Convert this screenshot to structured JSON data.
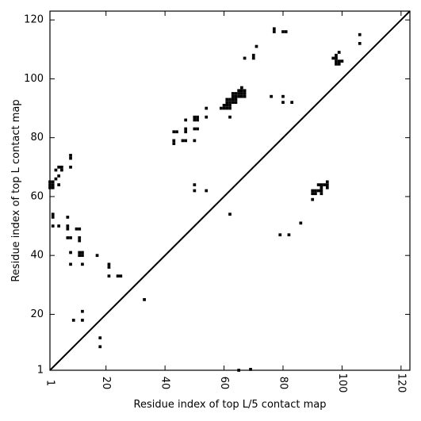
{
  "chart_data": {
    "type": "scatter",
    "xlabel": "Residue index of top L/5 contact map",
    "ylabel": "Residue index of top L contact map",
    "xlim": [
      1,
      123
    ],
    "ylim": [
      1,
      123
    ],
    "x_ticks": [
      1,
      20,
      40,
      60,
      80,
      100,
      120
    ],
    "y_ticks": [
      1,
      20,
      40,
      60,
      80,
      100,
      120
    ],
    "x_tick_labels": [
      "1",
      "20",
      "40",
      "60",
      "80",
      "100",
      "120"
    ],
    "y_tick_labels": [
      "1",
      "20",
      "40",
      "60",
      "80",
      "100",
      "120"
    ],
    "diagonal": true,
    "grid": false,
    "marker_color": "#000000",
    "points": [
      [
        1,
        63
      ],
      [
        1,
        64
      ],
      [
        1,
        65
      ],
      [
        2,
        63
      ],
      [
        2,
        64
      ],
      [
        2,
        65
      ],
      [
        2,
        53
      ],
      [
        2,
        54
      ],
      [
        2,
        50
      ],
      [
        3,
        69
      ],
      [
        3,
        66
      ],
      [
        4,
        70
      ],
      [
        4,
        67
      ],
      [
        4,
        64
      ],
      [
        4,
        50
      ],
      [
        5,
        70
      ],
      [
        5,
        69
      ],
      [
        7,
        53
      ],
      [
        7,
        50
      ],
      [
        7,
        49
      ],
      [
        7,
        46
      ],
      [
        8,
        74
      ],
      [
        8,
        73
      ],
      [
        8,
        70
      ],
      [
        8,
        46
      ],
      [
        8,
        41
      ],
      [
        8,
        37
      ],
      [
        10,
        49
      ],
      [
        11,
        49
      ],
      [
        11,
        46
      ],
      [
        11,
        45
      ],
      [
        11,
        41
      ],
      [
        11,
        40
      ],
      [
        12,
        41
      ],
      [
        12,
        40
      ],
      [
        12,
        37
      ],
      [
        12,
        21
      ],
      [
        12,
        18
      ],
      [
        9,
        18
      ],
      [
        17,
        40
      ],
      [
        18,
        12
      ],
      [
        18,
        9
      ],
      [
        21,
        37
      ],
      [
        21,
        36
      ],
      [
        21,
        33
      ],
      [
        24,
        33
      ],
      [
        25,
        33
      ],
      [
        33,
        25
      ],
      [
        43,
        82
      ],
      [
        43,
        79
      ],
      [
        43,
        78
      ],
      [
        44,
        82
      ],
      [
        46,
        79
      ],
      [
        47,
        86
      ],
      [
        47,
        83
      ],
      [
        47,
        82
      ],
      [
        47,
        79
      ],
      [
        50,
        87
      ],
      [
        50,
        86
      ],
      [
        50,
        83
      ],
      [
        50,
        79
      ],
      [
        50,
        64
      ],
      [
        50,
        62
      ],
      [
        51,
        87
      ],
      [
        51,
        86
      ],
      [
        51,
        83
      ],
      [
        54,
        90
      ],
      [
        54,
        87
      ],
      [
        54,
        62
      ],
      [
        59,
        90
      ],
      [
        60,
        90
      ],
      [
        60,
        91
      ],
      [
        61,
        90
      ],
      [
        61,
        91
      ],
      [
        61,
        92
      ],
      [
        61,
        93
      ],
      [
        62,
        90
      ],
      [
        62,
        91
      ],
      [
        62,
        92
      ],
      [
        62,
        93
      ],
      [
        62,
        87
      ],
      [
        62,
        54
      ],
      [
        63,
        92
      ],
      [
        63,
        93
      ],
      [
        63,
        94
      ],
      [
        63,
        95
      ],
      [
        64,
        92
      ],
      [
        64,
        93
      ],
      [
        64,
        94
      ],
      [
        64,
        95
      ],
      [
        65,
        94
      ],
      [
        65,
        95
      ],
      [
        65,
        96
      ],
      [
        66,
        94
      ],
      [
        66,
        95
      ],
      [
        66,
        96
      ],
      [
        66,
        97
      ],
      [
        67,
        94
      ],
      [
        67,
        95
      ],
      [
        67,
        96
      ],
      [
        67,
        107
      ],
      [
        65,
        1
      ],
      [
        69,
        1.3
      ],
      [
        70,
        107
      ],
      [
        70,
        108
      ],
      [
        71,
        111
      ],
      [
        76,
        94
      ],
      [
        77,
        116
      ],
      [
        77,
        117
      ],
      [
        79,
        47
      ],
      [
        80,
        116
      ],
      [
        80,
        94
      ],
      [
        80,
        92
      ],
      [
        81,
        116
      ],
      [
        82,
        47
      ],
      [
        83,
        92
      ],
      [
        86,
        51
      ],
      [
        90,
        62
      ],
      [
        90,
        61
      ],
      [
        90,
        59
      ],
      [
        91,
        62
      ],
      [
        91,
        61
      ],
      [
        92,
        64
      ],
      [
        92,
        62
      ],
      [
        93,
        64
      ],
      [
        93,
        63
      ],
      [
        93,
        62
      ],
      [
        93,
        61
      ],
      [
        94,
        64
      ],
      [
        95,
        65
      ],
      [
        95,
        64
      ],
      [
        95,
        63
      ],
      [
        97,
        107
      ],
      [
        98,
        107
      ],
      [
        98,
        108
      ],
      [
        98,
        106
      ],
      [
        98,
        105
      ],
      [
        99,
        105
      ],
      [
        99,
        106
      ],
      [
        99,
        109
      ],
      [
        100,
        106
      ],
      [
        106,
        115
      ],
      [
        106,
        112
      ]
    ]
  }
}
